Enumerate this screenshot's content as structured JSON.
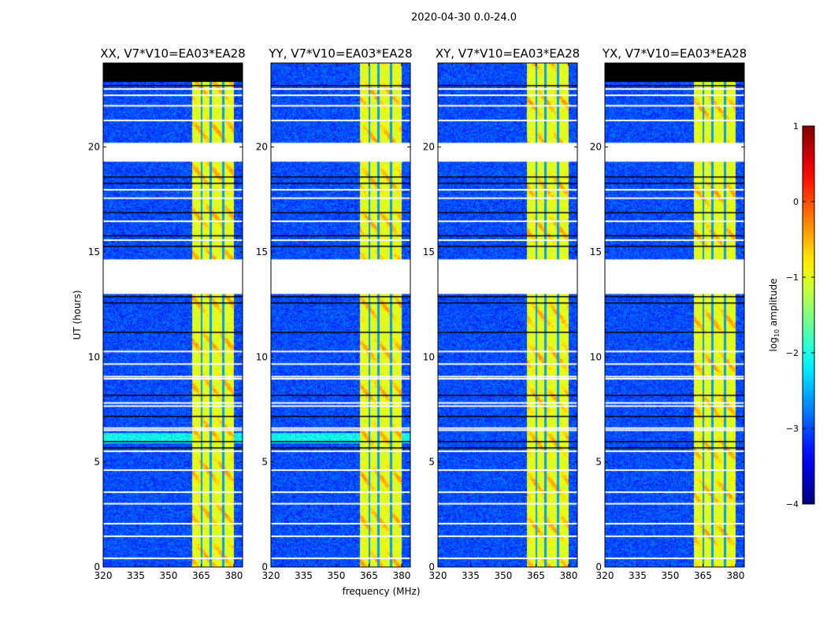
{
  "chart_data": {
    "type": "heatmap",
    "suptitle": "2020-04-30 0.0-24.0",
    "xlabel": "frequency (MHz)",
    "ylabel": "UT (hours)",
    "xlim": [
      320,
      384
    ],
    "ylim": [
      0,
      24
    ],
    "xticks": [
      "320",
      "335",
      "350",
      "365",
      "380"
    ],
    "xtick_values": [
      320,
      335,
      350,
      365,
      380
    ],
    "yticks": [
      "0",
      "5",
      "10",
      "15",
      "20"
    ],
    "ytick_values": [
      0,
      5,
      10,
      15,
      20
    ],
    "panels": [
      {
        "title": "XX, V7*V10=EA03*EA28",
        "no_data_top": [
          23.1,
          24
        ]
      },
      {
        "title": "YY, V7*V10=EA03*EA28",
        "no_data_top": null
      },
      {
        "title": "XY, V7*V10=EA03*EA28",
        "no_data_top": null
      },
      {
        "title": "YX, V7*V10=EA03*EA28",
        "no_data_top": [
          23.1,
          24
        ]
      }
    ],
    "band_mhz": [
      360.5,
      380
    ],
    "band_gaps_mhz": [
      365,
      369.3,
      375
    ],
    "flagged_hours": [
      [
        13.0,
        14.65
      ],
      [
        19.3,
        20.2
      ]
    ],
    "background_log_amp": -3,
    "band_log_amp": -1,
    "colorbar": {
      "label": "log10 amplitude",
      "label_main": "log",
      "label_sub": "10",
      "label_rest": " amplitude",
      "min": -4,
      "max": 1,
      "ticks": [
        "1",
        "0",
        "−1",
        "−2",
        "−3",
        "−4"
      ],
      "tick_values": [
        1,
        0,
        -1,
        -2,
        -3,
        -4
      ],
      "colormap": "jet"
    }
  }
}
